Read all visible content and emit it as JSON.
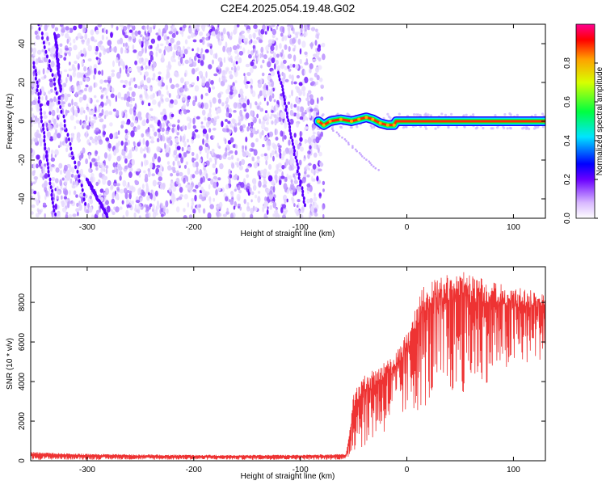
{
  "title": "C2E4.2025.054.19.48.G02",
  "chart_data": [
    {
      "type": "heatmap",
      "xlabel": "Height of straight line (km)",
      "ylabel": "Frequency (Hz)",
      "xlim": [
        -353,
        130
      ],
      "ylim": [
        -50,
        50
      ],
      "xticks": [
        -300,
        -200,
        -100,
        0,
        100
      ],
      "yticks": [
        -40,
        -20,
        0,
        20,
        40
      ],
      "noise_region_x": [
        -353,
        -78
      ],
      "signal_trace": [
        {
          "x": -83,
          "y": 0
        },
        {
          "x": -78,
          "y": -2
        },
        {
          "x": -72,
          "y": 0
        },
        {
          "x": -62,
          "y": 1
        },
        {
          "x": -52,
          "y": 0
        },
        {
          "x": -45,
          "y": 1
        },
        {
          "x": -38,
          "y": 2
        },
        {
          "x": -32,
          "y": 1
        },
        {
          "x": -25,
          "y": -1
        },
        {
          "x": -18,
          "y": -2
        },
        {
          "x": -12,
          "y": -2
        },
        {
          "x": -10,
          "y": 0
        },
        {
          "x": 0,
          "y": 0
        },
        {
          "x": 50,
          "y": 0
        },
        {
          "x": 130,
          "y": 0
        }
      ],
      "colorbar": {
        "label": "Normalized spectral amplitude",
        "range": [
          0,
          1
        ],
        "ticks": [
          "0.0",
          "0.2",
          "0.4",
          "0.6",
          "0.8"
        ]
      }
    },
    {
      "type": "line",
      "xlabel": "Height of straight line (km)",
      "ylabel": "SNR (10 * v/v)",
      "xlim": [
        -353,
        130
      ],
      "ylim": [
        0,
        9800
      ],
      "xticks": [
        -300,
        -200,
        -100,
        0,
        100
      ],
      "yticks": [
        0,
        2000,
        4000,
        6000,
        8000
      ],
      "color": "#ee3333",
      "envelope": [
        {
          "x": -353,
          "lo": 50,
          "hi": 450
        },
        {
          "x": -300,
          "lo": 50,
          "hi": 350
        },
        {
          "x": -200,
          "lo": 50,
          "hi": 300
        },
        {
          "x": -100,
          "lo": 50,
          "hi": 300
        },
        {
          "x": -57,
          "lo": 50,
          "hi": 350
        },
        {
          "x": -53,
          "lo": 200,
          "hi": 1800
        },
        {
          "x": -50,
          "lo": 400,
          "hi": 3500
        },
        {
          "x": -40,
          "lo": 700,
          "hi": 4300
        },
        {
          "x": -25,
          "lo": 1200,
          "hi": 4800
        },
        {
          "x": -10,
          "lo": 1800,
          "hi": 5500
        },
        {
          "x": 0,
          "lo": 2200,
          "hi": 6500
        },
        {
          "x": 15,
          "lo": 2600,
          "hi": 8800
        },
        {
          "x": 30,
          "lo": 3000,
          "hi": 9300
        },
        {
          "x": 50,
          "lo": 3300,
          "hi": 9600
        },
        {
          "x": 70,
          "lo": 3800,
          "hi": 9300
        },
        {
          "x": 90,
          "lo": 4300,
          "hi": 8900
        },
        {
          "x": 110,
          "lo": 4700,
          "hi": 8700
        },
        {
          "x": 130,
          "lo": 5200,
          "hi": 8500
        }
      ]
    }
  ]
}
